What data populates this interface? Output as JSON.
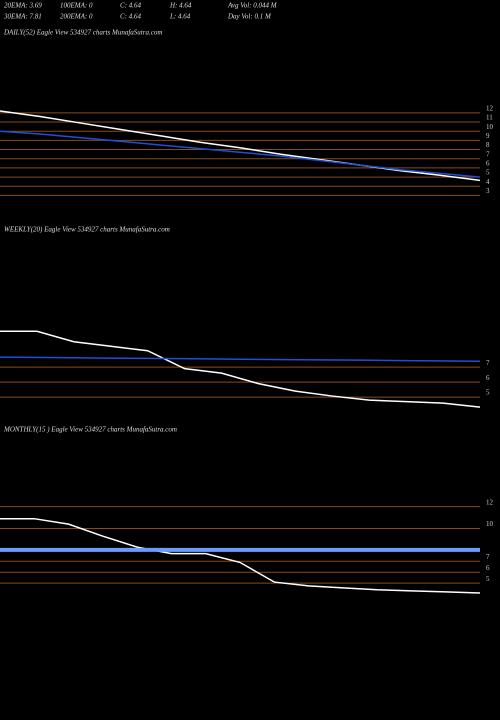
{
  "header": {
    "stats": [
      [
        "20EMA: 3.69",
        "100EMA: 0",
        "C: 4.64",
        "H: 4.64",
        "Avg Vol: 0.044  M"
      ],
      [
        "30EMA: 7.81",
        "200EMA: 0",
        "C: 4.64",
        "L: 4.64",
        "Day Vol: 0.1 M"
      ]
    ]
  },
  "chart_data": [
    {
      "type": "line",
      "title": "DAILY(52) Eagle  View  534927 charts MunafaSutra.com",
      "ylim": [
        2.5,
        13.4
      ],
      "yticks": [
        3,
        4,
        5,
        6,
        7,
        8,
        9,
        10,
        11,
        12
      ],
      "grid": true,
      "grid_color": "#8a4a1a",
      "series": [
        {
          "name": "Price",
          "color": "#ffffff",
          "values": [
            12.2,
            11.6,
            10.9,
            10.2,
            9.5,
            8.8,
            8.2,
            7.5,
            6.9,
            6.3,
            5.7,
            5.2,
            4.64
          ]
        },
        {
          "name": "EMA",
          "color": "#1f4fd8",
          "values": [
            10,
            9.7,
            9.3,
            8.9,
            8.5,
            8.1,
            7.7,
            7.3,
            6.8,
            6.3,
            5.8,
            5.4,
            5.0
          ]
        }
      ]
    },
    {
      "type": "line",
      "title": "WEEKLY(20) Eagle  View  534927 charts MunafaSutra.com",
      "ylim": [
        3.47,
        15.5
      ],
      "yticks": [
        5,
        6,
        7
      ],
      "grid": true,
      "grid_color": "#8a4a1a",
      "series": [
        {
          "name": "Price",
          "color": "#ffffff",
          "values": [
            9.4,
            9.4,
            8.7,
            8.4,
            8.1,
            6.9,
            6.6,
            5.9,
            5.4,
            5.07,
            4.8,
            4.7,
            4.6,
            4.33
          ]
        },
        {
          "name": "EMA",
          "color": "#1f4fd8",
          "values": [
            7.67,
            7.64,
            7.6,
            7.57,
            7.53,
            7.5,
            7.47,
            7.43,
            7.4
          ]
        }
      ]
    },
    {
      "type": "line",
      "title": "MONTHLY(15            ) Eagle  View  534927 charts MunafaSutra.com",
      "ylim": [
        1.63,
        18.1
      ],
      "yticks": [
        5,
        6,
        7,
        10,
        12
      ],
      "grid": true,
      "grid_color": "#8a4a1a",
      "series": [
        {
          "name": "Price",
          "color": "#ffffff",
          "values": [
            10.9,
            10.9,
            10.4,
            9.3,
            8.3,
            7.7,
            7.7,
            6.9,
            5.1,
            4.75,
            4.57,
            4.4,
            4.3,
            4.2,
            4.1
          ]
        },
        {
          "name": "EMA",
          "color": "#6a9cff",
          "values": [
            8.05,
            8.05
          ]
        }
      ]
    }
  ]
}
